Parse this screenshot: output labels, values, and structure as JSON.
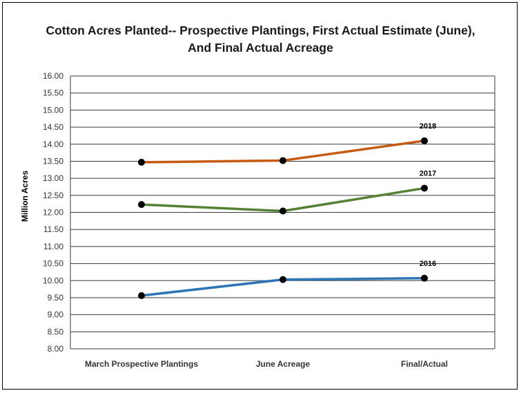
{
  "chart_data": {
    "type": "line",
    "title_line1": "Cotton Acres Planted-- Prospective Plantings, First Actual Estimate (June),",
    "title_line2": "And Final Actual Acreage",
    "xlabel": "",
    "ylabel": "Million Acres",
    "categories": [
      "March Prospective Plantings",
      "June Acreage",
      "Final/Actual"
    ],
    "ylim": [
      8.0,
      16.0
    ],
    "ytick_step": 0.5,
    "grid": true,
    "legend": "none (series labeled at end of line)",
    "series": [
      {
        "name": "2018",
        "color": "#c55a11",
        "values": [
          13.47,
          13.52,
          14.1
        ]
      },
      {
        "name": "2017",
        "color": "#548235",
        "values": [
          12.23,
          12.04,
          12.71
        ]
      },
      {
        "name": "2016",
        "color": "#2e75b6",
        "values": [
          9.56,
          10.03,
          10.07
        ]
      }
    ]
  }
}
